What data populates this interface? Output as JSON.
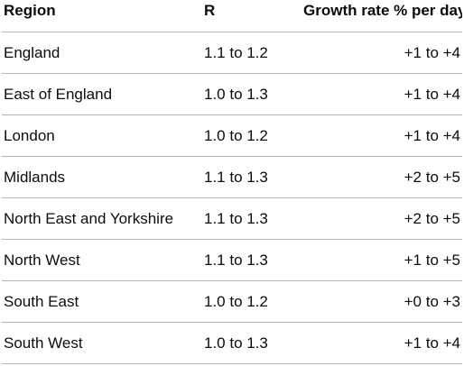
{
  "table": {
    "headers": {
      "region": "Region",
      "r": "R",
      "growth": "Growth rate % per day"
    },
    "rows": [
      {
        "region": "England",
        "r": "1.1 to 1.2",
        "growth": "+1 to +4"
      },
      {
        "region": "East of England",
        "r": "1.0 to 1.3",
        "growth": "+1 to +4"
      },
      {
        "region": "London",
        "r": "1.0 to 1.2",
        "growth": "+1 to +4"
      },
      {
        "region": "Midlands",
        "r": "1.1 to 1.3",
        "growth": "+2 to +5"
      },
      {
        "region": "North East and Yorkshire",
        "r": "1.1 to 1.3",
        "growth": "+2 to +5"
      },
      {
        "region": "North West",
        "r": "1.1 to 1.3",
        "growth": "+1 to +5"
      },
      {
        "region": "South East",
        "r": "1.0 to 1.2",
        "growth": "+0 to +3"
      },
      {
        "region": "South West",
        "r": "1.0 to 1.3",
        "growth": "+1 to +4"
      }
    ]
  }
}
